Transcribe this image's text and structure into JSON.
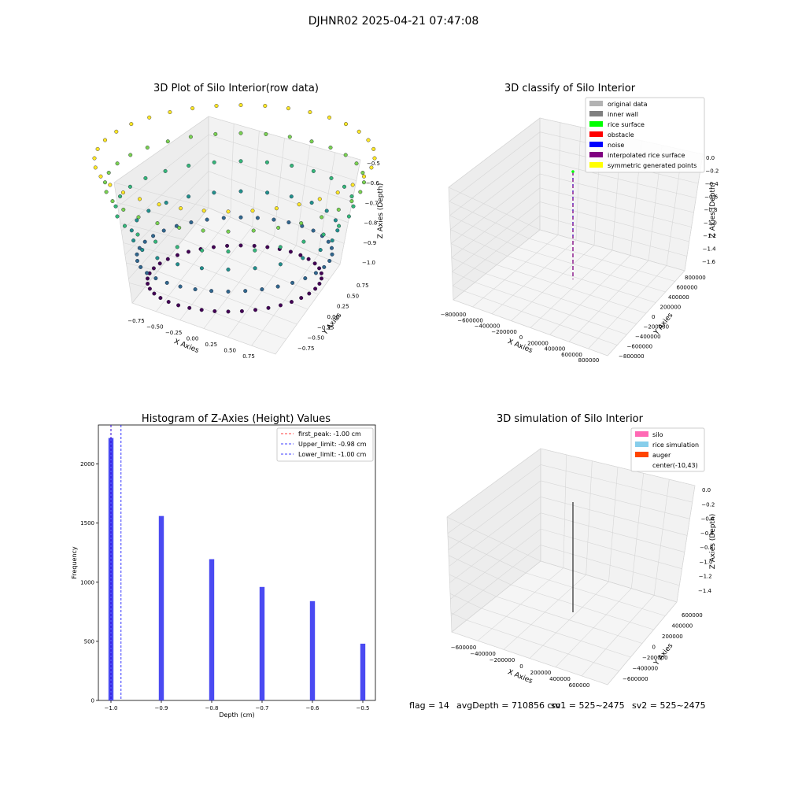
{
  "figure": {
    "suptitle": "DJHNR02 2025-04-21 07:47:08",
    "footer": {
      "flag": "flag = 14",
      "avg_depth": "avgDepth = 710856 cm",
      "sv1": "sv1 = 525~2475",
      "sv2": "sv2 = 525~2475"
    }
  },
  "colors": {
    "hist_bar": "#4a4af2",
    "first_peak": "#ff0000",
    "limit_line": "#0000ff",
    "original_data": "#b3b3b3",
    "inner_wall": "#808080",
    "rice_surface": "#00ff00",
    "obstacle": "#ff0000",
    "noise": "#0000ff",
    "interpolated_rice_surface": "#800080",
    "symmetric_generated_points": "#ffff00",
    "silo": "#ff69b4",
    "rice_simulation": "#87ceeb",
    "auger": "#ff4500"
  },
  "chart_data": [
    {
      "type": "scatter",
      "subtype": "3d-scatter",
      "title": "3D Plot of Silo Interior(row data)",
      "xlabel": "X Axies",
      "ylabel": "Y Axies",
      "zlabel": "Z Axies (Depth)",
      "x_ticks": [
        "−0.75",
        "−0.50",
        "−0.25",
        "0.00",
        "0.25",
        "0.50",
        "0.75"
      ],
      "y_ticks": [
        "−0.75",
        "−0.50",
        "−0.25",
        "0.00",
        "0.25",
        "0.50",
        "0.75"
      ],
      "z_ticks": [
        "−0.5",
        "−0.6",
        "−0.7",
        "−0.8",
        "−0.9",
        "−1.0"
      ],
      "xlim": [
        -0.85,
        0.85
      ],
      "ylim": [
        -0.85,
        0.85
      ],
      "zlim": [
        -1.02,
        -0.48
      ],
      "colormap": "viridis",
      "series": [
        {
          "z": -0.5,
          "radius": 0.8,
          "count": 36
        },
        {
          "z": -0.6,
          "radius": 0.7,
          "count": 32
        },
        {
          "z": -0.7,
          "radius": 0.6,
          "count": 28
        },
        {
          "z": -0.8,
          "radius": 0.45,
          "count": 24
        },
        {
          "z": -0.9,
          "radius": 0.4,
          "count": 36
        },
        {
          "z": -1.0,
          "radius": 0.3,
          "count": 40
        }
      ]
    },
    {
      "type": "scatter",
      "subtype": "3d-classification",
      "title": "3D classify of Silo Interior",
      "xlabel": "X Axies",
      "ylabel": "Y Axies",
      "zlabel": "Z Axies (Depth)",
      "x_ticks": [
        "−800000",
        "−600000",
        "−400000",
        "−200000",
        "0",
        "200000",
        "400000",
        "600000",
        "800000"
      ],
      "y_ticks": [
        "−800000",
        "−600000",
        "−400000",
        "−200000",
        "0",
        "200000",
        "400000",
        "600000",
        "800000"
      ],
      "z_ticks": [
        "0.0",
        "−0.2",
        "−0.4",
        "−0.6",
        "−0.8",
        "−1.0",
        "−1.2",
        "−1.4",
        "−1.6"
      ],
      "legend": [
        "original data",
        "inner wall",
        "rice surface",
        "obstacle",
        "noise",
        "interpolated rice surface",
        "symmetric generated points"
      ],
      "legend_position": "top-right"
    },
    {
      "type": "bar",
      "subtype": "histogram",
      "title": "Histogram of Z-Axies (Height) Values",
      "xlabel": "Depth (cm)",
      "ylabel": "Frequency",
      "x_ticks": [
        "−1.0",
        "−0.9",
        "−0.8",
        "−0.7",
        "−0.6",
        "−0.5"
      ],
      "y_ticks": [
        "0",
        "500",
        "1000",
        "1500",
        "2000"
      ],
      "xlim": [
        -1.025,
        -0.475
      ],
      "ylim": [
        0,
        2330
      ],
      "bin_width": 0.01,
      "bins": [
        {
          "x": -1.0,
          "count": 2220
        },
        {
          "x": -0.9,
          "count": 1560
        },
        {
          "x": -0.8,
          "count": 1195
        },
        {
          "x": -0.7,
          "count": 960
        },
        {
          "x": -0.6,
          "count": 840
        },
        {
          "x": -0.5,
          "count": 480
        }
      ],
      "vlines": [
        {
          "label": "first_peak: -1.00 cm",
          "x": -1.0,
          "color_key": "first_peak"
        },
        {
          "label": "Upper_limit: -0.98 cm",
          "x": -0.98,
          "color_key": "limit_line"
        },
        {
          "label": "Lower_limit: -1.00 cm",
          "x": -1.0,
          "color_key": "limit_line"
        }
      ],
      "legend_position": "top-right"
    },
    {
      "type": "scatter",
      "subtype": "3d-simulation",
      "title": "3D simulation of Silo Interior",
      "xlabel": "X Axies",
      "ylabel": "Y Axies",
      "zlabel": "Z Axies (Depth)",
      "x_ticks": [
        "−600000",
        "−400000",
        "−200000",
        "0",
        "200000",
        "400000",
        "600000"
      ],
      "y_ticks": [
        "−600000",
        "−400000",
        "−200000",
        "0",
        "200000",
        "400000",
        "600000"
      ],
      "z_ticks": [
        "0.0",
        "−0.2",
        "−0.4",
        "−0.6",
        "−0.8",
        "−1.0",
        "−1.2",
        "−1.4"
      ],
      "legend": [
        "silo",
        "rice simulation",
        "auger",
        "center(-10,43)"
      ],
      "legend_position": "top-right"
    }
  ]
}
